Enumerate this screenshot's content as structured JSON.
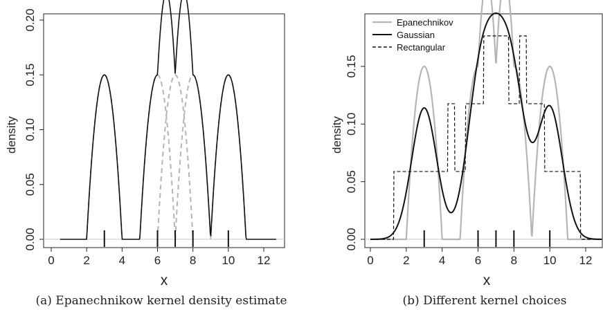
{
  "chart_data": [
    {
      "id": "a",
      "type": "line",
      "caption": "(a) Epanechnikow kernel density estimate",
      "xlabel": "x",
      "ylabel": "density",
      "xlim": [
        0,
        12.6
      ],
      "ylim": [
        0,
        0.2
      ],
      "x_ticks": [
        "0",
        "2",
        "4",
        "6",
        "8",
        "10",
        "12"
      ],
      "y_ticks": [
        "0.00",
        "0.05",
        "0.10",
        "0.15",
        "0.20"
      ],
      "observations": [
        3,
        6,
        7,
        8,
        10
      ],
      "bandwidth": 1,
      "kernel": "epanechnikov",
      "baseline": true,
      "series": [
        {
          "role": "kde",
          "color": "#111111",
          "dash": "solid"
        },
        {
          "role": "component-kernels",
          "color": "#b5b5b5",
          "dash": "dashed"
        }
      ]
    },
    {
      "id": "b",
      "type": "line",
      "caption": "(b) Different kernel choices",
      "xlabel": "x",
      "ylabel": "density",
      "xlim": [
        0,
        12.9
      ],
      "ylim": [
        0,
        0.19
      ],
      "x_ticks": [
        "0",
        "2",
        "4",
        "6",
        "8",
        "10",
        "12"
      ],
      "y_ticks": [
        "0.00",
        "0.05",
        "0.10",
        "0.15"
      ],
      "observations": [
        3,
        6,
        7,
        8,
        10
      ],
      "baseline": true,
      "legend_position": "top-left",
      "series": [
        {
          "name": "Epanechnikov",
          "kernel": "epanechnikov",
          "bandwidth": 1,
          "color": "#b5b5b5",
          "dash": "solid"
        },
        {
          "name": "Gaussian",
          "kernel": "gaussian",
          "bandwidth": 0.7,
          "color": "#111111",
          "dash": "solid"
        },
        {
          "name": "Rectangular",
          "kernel": "rectangular",
          "bandwidth": 1.7,
          "color": "#111111",
          "dash": "dashed"
        }
      ]
    }
  ]
}
